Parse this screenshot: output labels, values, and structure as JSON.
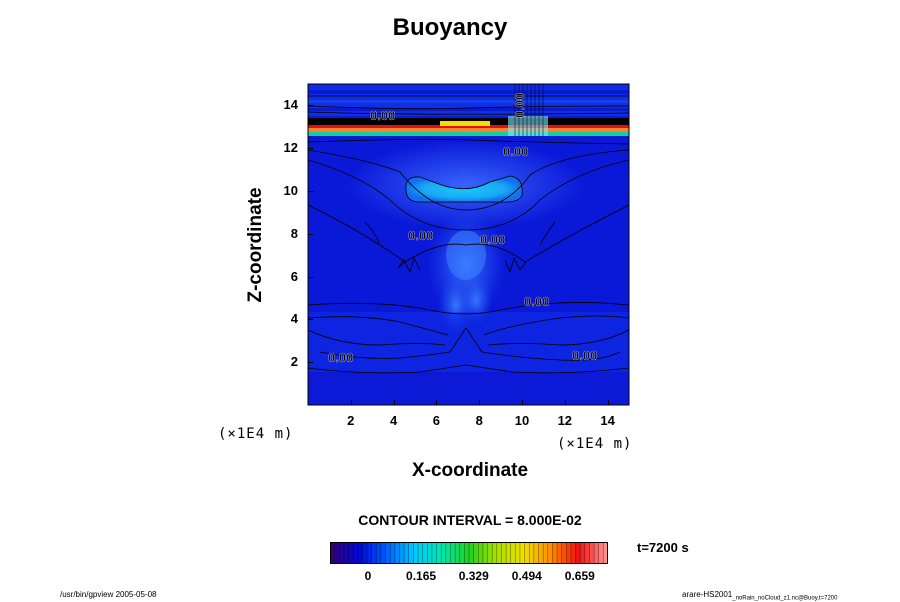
{
  "chart_data": {
    "type": "heatmap",
    "title": "Buoyancy",
    "xlabel": "X-coordinate",
    "ylabel": "Z-coordinate",
    "x_unit": "(×1E4 m)",
    "y_unit": "(×1E4 m)",
    "xlim": [
      0,
      15
    ],
    "ylim": [
      0,
      15
    ],
    "x_ticks": [
      "2",
      "4",
      "6",
      "8",
      "10",
      "12",
      "14"
    ],
    "y_ticks": [
      "2",
      "4",
      "6",
      "8",
      "10",
      "12",
      "14"
    ],
    "contour_labels": [
      "0.00",
      "0.00",
      "0.00",
      "0.00",
      "0.00",
      "0.00",
      "0.00",
      "0.00"
    ],
    "contour_interval_text": "CONTOUR INTERVAL = 8.000E-02",
    "colorbar": {
      "tick_labels": [
        "0",
        "0.165",
        "0.329",
        "0.494",
        "0.659"
      ],
      "colors": [
        "#32007a",
        "#0008d8",
        "#0060ff",
        "#00c8ff",
        "#00e8b0",
        "#20d020",
        "#a8e000",
        "#f0e000",
        "#ff8c00",
        "#f01010",
        "#ff9090"
      ]
    },
    "time_label": "t=7200 s"
  },
  "footer": {
    "left": "/usr/bin/gpview 2005-05-08",
    "right_main": "arare-HS2001",
    "right_sub": "_noRain_noCloud_z1.nc@Buoy,t=7200"
  }
}
